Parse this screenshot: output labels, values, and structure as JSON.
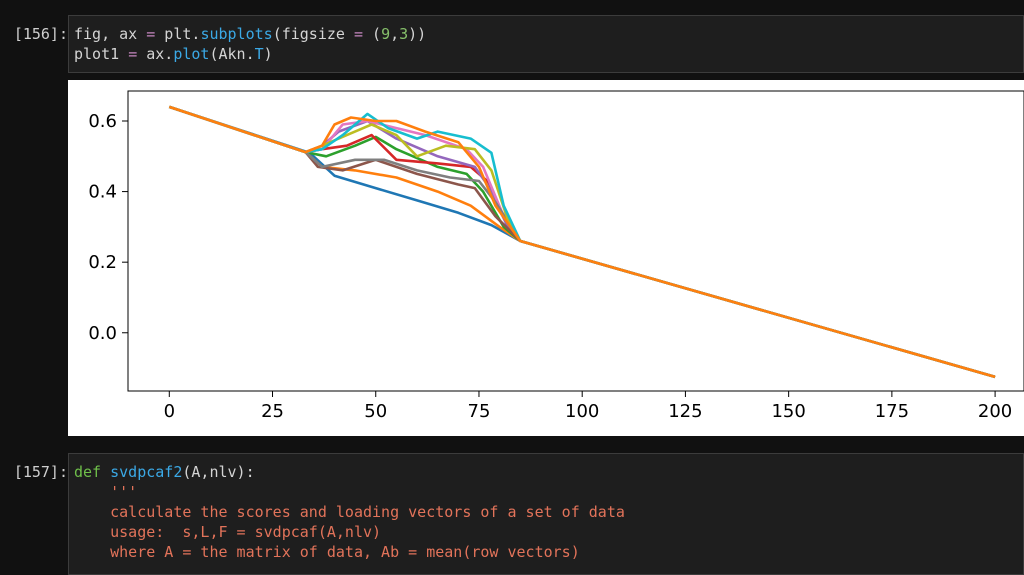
{
  "cells": [
    {
      "prompt": "[156]:",
      "lines": [
        [
          {
            "t": "fig, ax ",
            "c": ""
          },
          {
            "t": "=",
            "c": "op"
          },
          {
            "t": " plt.",
            "c": ""
          },
          {
            "t": "subplots",
            "c": "fn"
          },
          {
            "t": "(figsize ",
            "c": ""
          },
          {
            "t": "=",
            "c": "op"
          },
          {
            "t": " (",
            "c": ""
          },
          {
            "t": "9",
            "c": "num"
          },
          {
            "t": ",",
            "c": ""
          },
          {
            "t": "3",
            "c": "num"
          },
          {
            "t": "))",
            "c": ""
          }
        ],
        [
          {
            "t": "plot1 ",
            "c": ""
          },
          {
            "t": "=",
            "c": "op"
          },
          {
            "t": " ax.",
            "c": ""
          },
          {
            "t": "plot",
            "c": "fn"
          },
          {
            "t": "(Akn.",
            "c": ""
          },
          {
            "t": "T",
            "c": "attr"
          },
          {
            "t": ")",
            "c": ""
          }
        ]
      ]
    },
    {
      "prompt": "[157]:",
      "lines": [
        [
          {
            "t": "def",
            "c": "kw"
          },
          {
            "t": " ",
            "c": ""
          },
          {
            "t": "svdpcaf2",
            "c": "fn"
          },
          {
            "t": "(A,nlv):",
            "c": ""
          }
        ],
        [
          {
            "t": "    '''",
            "c": "str"
          }
        ],
        [
          {
            "t": "    calculate the scores and loading vectors of a set of data",
            "c": "str"
          }
        ],
        [
          {
            "t": "    usage:  s,L,F = svdpcaf(A,nlv)",
            "c": "str"
          }
        ],
        [
          {
            "t": "    where A = the matrix of data, Ab = mean(row vectors)",
            "c": "str"
          }
        ]
      ]
    }
  ],
  "chart_data": {
    "type": "line",
    "title": "",
    "xlabel": "",
    "ylabel": "",
    "xlim": [
      -10,
      207
    ],
    "ylim": [
      -0.165,
      0.685
    ],
    "xticks": [
      0,
      25,
      50,
      75,
      100,
      125,
      150,
      175,
      200
    ],
    "xtick_labels": [
      "0",
      "25",
      "50",
      "75",
      "100",
      "125",
      "150",
      "175",
      "200"
    ],
    "yticks": [
      0.0,
      0.2,
      0.4,
      0.6
    ],
    "ytick_labels": [
      "0.0",
      "0.2",
      "0.4",
      "0.6"
    ],
    "baseline": {
      "x": [
        0,
        200
      ],
      "y": [
        0.64,
        -0.125
      ]
    },
    "series": [
      {
        "color": "#1f77b4",
        "x": [
          0,
          34,
          40,
          50,
          60,
          70,
          78,
          85,
          200
        ],
        "y": [
          0.64,
          0.51,
          0.445,
          0.41,
          0.375,
          0.34,
          0.305,
          0.26,
          -0.125
        ]
      },
      {
        "color": "#ff7f0e",
        "x": [
          0,
          33,
          37,
          45,
          55,
          65,
          73,
          80,
          85,
          200
        ],
        "y": [
          0.64,
          0.512,
          0.47,
          0.46,
          0.44,
          0.4,
          0.36,
          0.3,
          0.26,
          -0.125
        ]
      },
      {
        "color": "#2ca02c",
        "x": [
          0,
          33,
          38,
          45,
          50,
          55,
          65,
          72,
          76,
          81,
          85,
          200
        ],
        "y": [
          0.64,
          0.512,
          0.5,
          0.53,
          0.555,
          0.52,
          0.47,
          0.45,
          0.4,
          0.3,
          0.26,
          -0.125
        ]
      },
      {
        "color": "#d62728",
        "x": [
          0,
          33,
          37,
          43,
          49,
          55,
          65,
          73,
          77,
          82,
          85,
          200
        ],
        "y": [
          0.64,
          0.512,
          0.52,
          0.53,
          0.56,
          0.49,
          0.48,
          0.47,
          0.43,
          0.3,
          0.26,
          -0.125
        ]
      },
      {
        "color": "#9467bd",
        "x": [
          0,
          33,
          37,
          41,
          48,
          55,
          65,
          74,
          77,
          82,
          85,
          200
        ],
        "y": [
          0.64,
          0.512,
          0.53,
          0.57,
          0.6,
          0.55,
          0.5,
          0.47,
          0.42,
          0.3,
          0.26,
          -0.125
        ]
      },
      {
        "color": "#8c564b",
        "x": [
          0,
          33,
          36,
          42,
          50,
          60,
          70,
          74,
          79,
          85,
          200
        ],
        "y": [
          0.64,
          0.512,
          0.47,
          0.46,
          0.49,
          0.45,
          0.42,
          0.41,
          0.33,
          0.26,
          -0.125
        ]
      },
      {
        "color": "#e377c2",
        "x": [
          0,
          33,
          37,
          42,
          48,
          55,
          62,
          72,
          76,
          81,
          85,
          200
        ],
        "y": [
          0.64,
          0.512,
          0.52,
          0.59,
          0.6,
          0.58,
          0.56,
          0.52,
          0.47,
          0.33,
          0.26,
          -0.125
        ]
      },
      {
        "color": "#7f7f7f",
        "x": [
          0,
          33,
          37,
          45,
          52,
          60,
          68,
          75,
          79,
          85,
          200
        ],
        "y": [
          0.64,
          0.512,
          0.47,
          0.49,
          0.49,
          0.46,
          0.44,
          0.43,
          0.37,
          0.26,
          -0.125
        ]
      },
      {
        "color": "#bcbd22",
        "x": [
          0,
          33,
          37,
          43,
          49,
          55,
          60,
          67,
          74,
          78,
          82,
          85,
          200
        ],
        "y": [
          0.64,
          0.512,
          0.53,
          0.56,
          0.59,
          0.56,
          0.5,
          0.53,
          0.52,
          0.46,
          0.32,
          0.26,
          -0.125
        ]
      },
      {
        "color": "#17becf",
        "x": [
          0,
          33,
          37,
          42,
          48,
          53,
          60,
          65,
          73,
          78,
          81,
          85,
          200
        ],
        "y": [
          0.64,
          0.512,
          0.52,
          0.56,
          0.62,
          0.58,
          0.55,
          0.57,
          0.55,
          0.51,
          0.36,
          0.26,
          -0.125
        ]
      },
      {
        "color": "#ff7f0e",
        "x": [
          0,
          33,
          37,
          40,
          44,
          50,
          55,
          62,
          70,
          75,
          79,
          85,
          200
        ],
        "y": [
          0.64,
          0.512,
          0.53,
          0.59,
          0.61,
          0.6,
          0.6,
          0.57,
          0.54,
          0.47,
          0.36,
          0.26,
          -0.125
        ]
      }
    ]
  }
}
